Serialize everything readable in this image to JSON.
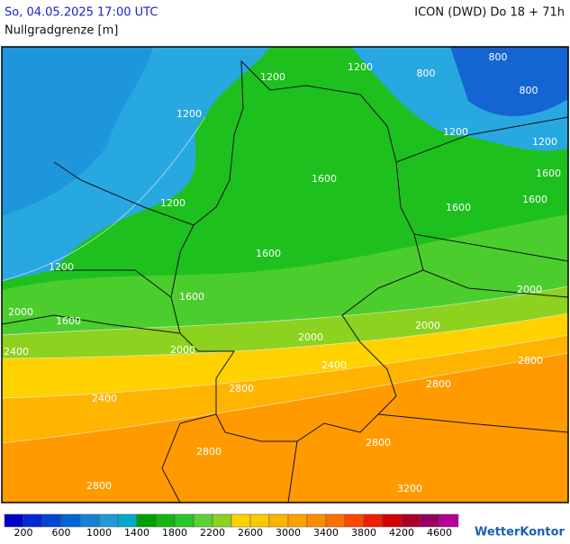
{
  "header": {
    "datetime": "So, 04.05.2025 17:00 UTC",
    "model": "ICON (DWD) Do 18 + 71h",
    "parameter": "Nullgradgrenze [m]"
  },
  "contour_labels": [
    "1200",
    "800",
    "800",
    "800",
    "1200",
    "1200",
    "1200",
    "1200",
    "1200",
    "1200",
    "1600",
    "1600",
    "1600",
    "1600",
    "1600",
    "1600",
    "1600",
    "2000",
    "2000",
    "2000",
    "2000",
    "2000",
    "2400",
    "2400",
    "2400",
    "2800",
    "2800",
    "2800",
    "2800",
    "2800",
    "2800",
    "3200"
  ],
  "legend": {
    "colors": [
      "#0000c8",
      "#0028d2",
      "#0046d2",
      "#0064d2",
      "#1482d2",
      "#1e9bd7",
      "#00aac8",
      "#00a000",
      "#14b414",
      "#28c828",
      "#5ad232",
      "#8cd21e",
      "#ffd200",
      "#ffc800",
      "#ffb400",
      "#ffa000",
      "#ff8c00",
      "#ff6e00",
      "#ff4600",
      "#f01e00",
      "#d20000",
      "#aa0028",
      "#960064",
      "#b40096"
    ],
    "ticks": [
      200,
      600,
      1000,
      1400,
      1800,
      2200,
      2600,
      3000,
      3400,
      3800,
      4200,
      4600
    ]
  },
  "brand": "WetterKontor"
}
